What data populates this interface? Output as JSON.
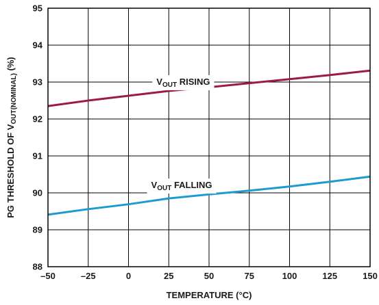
{
  "chart_data": {
    "type": "line",
    "xlabel": "TEMPERATURE (°C)",
    "ylabel": {
      "prefix": "PG THRESHOLD OF V",
      "sub": "OUT(NOMINAL)",
      "suffix": " (%)"
    },
    "xlim": [
      -50,
      150
    ],
    "ylim": [
      88,
      95
    ],
    "x_ticks": [
      -50,
      -25,
      0,
      25,
      50,
      75,
      100,
      125,
      150
    ],
    "x_tick_labels": [
      "–50",
      "–25",
      "0",
      "25",
      "50",
      "75",
      "100",
      "125",
      "150"
    ],
    "y_ticks": [
      88,
      89,
      90,
      91,
      92,
      93,
      94,
      95
    ],
    "y_tick_labels": [
      "88",
      "89",
      "90",
      "91",
      "92",
      "93",
      "94",
      "95"
    ],
    "grid": true,
    "series": [
      {
        "label": {
          "main": "V",
          "sub": "OUT",
          "rest": " RISING"
        },
        "color": "#9b1b45",
        "x": [
          -50,
          -25,
          0,
          25,
          50,
          75,
          100,
          125,
          150
        ],
        "y": [
          92.35,
          92.5,
          92.63,
          92.76,
          92.86,
          92.97,
          93.08,
          93.19,
          93.31
        ]
      },
      {
        "label": {
          "main": "V",
          "sub": "OUT",
          "rest": " FALLING"
        },
        "color": "#1b9bd0",
        "x": [
          -50,
          -25,
          0,
          25,
          50,
          75,
          100,
          125,
          150
        ],
        "y": [
          89.41,
          89.56,
          89.69,
          89.85,
          89.96,
          90.06,
          90.17,
          90.3,
          90.44
        ]
      }
    ]
  }
}
